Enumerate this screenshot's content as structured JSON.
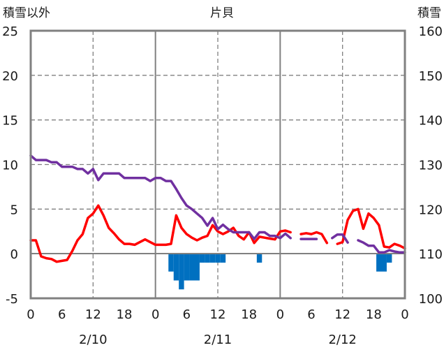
{
  "chart_data": {
    "type": "line",
    "title": "片貝",
    "ylabel_left": "積雪以外",
    "ylabel_right": "積雪",
    "x_tick_labels": [
      "0",
      "6",
      "12",
      "18",
      "0",
      "6",
      "12",
      "18",
      "0",
      "6",
      "12",
      "18",
      "0"
    ],
    "date_labels": [
      "2/10",
      "2/11",
      "2/12"
    ],
    "x_range_hours": [
      0,
      72
    ],
    "left_axis": {
      "range": [
        -5,
        25
      ],
      "ticks": [
        -5,
        0,
        5,
        10,
        15,
        20,
        25
      ]
    },
    "right_axis": {
      "range": [
        100,
        160
      ],
      "ticks": [
        100,
        110,
        120,
        130,
        140,
        150,
        160
      ]
    },
    "grid": true,
    "series": [
      {
        "axis": "left",
        "color": "#ff0000",
        "style": "line",
        "points": [
          [
            0,
            1.5
          ],
          [
            1,
            1.5
          ],
          [
            2,
            -0.3
          ],
          [
            3,
            -0.5
          ],
          [
            4,
            -0.6
          ],
          [
            5,
            -0.9
          ],
          [
            6,
            -0.8
          ],
          [
            7,
            -0.7
          ],
          [
            8,
            0.3
          ],
          [
            9,
            1.5
          ],
          [
            10,
            2.2
          ],
          [
            11,
            4.0
          ],
          [
            12,
            4.5
          ],
          [
            13,
            5.4
          ],
          [
            14,
            4.3
          ],
          [
            15,
            2.9
          ],
          [
            16,
            2.3
          ],
          [
            17,
            1.6
          ],
          [
            18,
            1.1
          ],
          [
            19,
            1.1
          ],
          [
            20,
            1.0
          ],
          [
            21,
            1.3
          ],
          [
            22,
            1.6
          ],
          [
            23,
            1.3
          ],
          [
            24,
            1.0
          ],
          [
            25,
            1.0
          ],
          [
            26,
            1.0
          ],
          [
            27,
            1.1
          ],
          [
            28,
            4.3
          ],
          [
            29,
            2.9
          ],
          [
            30,
            2.2
          ],
          [
            31,
            1.8
          ],
          [
            32,
            1.5
          ],
          [
            33,
            1.8
          ],
          [
            34,
            2.0
          ],
          [
            35,
            3.2
          ],
          [
            36,
            2.5
          ],
          [
            37,
            2.2
          ],
          [
            38,
            2.5
          ],
          [
            39,
            2.9
          ],
          [
            40,
            2.0
          ],
          [
            41,
            1.6
          ],
          [
            42,
            2.4
          ],
          [
            43,
            1.2
          ],
          [
            44,
            1.9
          ],
          [
            45,
            1.8
          ],
          [
            46,
            1.7
          ],
          [
            47,
            1.6
          ],
          [
            48,
            2.5
          ],
          [
            49,
            2.6
          ],
          [
            50,
            2.4
          ],
          null,
          [
            52,
            2.2
          ],
          [
            53,
            2.3
          ],
          [
            54,
            2.2
          ],
          [
            55,
            2.4
          ],
          [
            56,
            2.2
          ],
          [
            57,
            1.2
          ],
          null,
          [
            59,
            1.1
          ],
          [
            60,
            1.3
          ],
          [
            61,
            3.8
          ],
          [
            62,
            4.8
          ],
          [
            63,
            5.0
          ],
          [
            64,
            2.8
          ],
          [
            65,
            4.5
          ],
          [
            66,
            4.0
          ],
          [
            67,
            3.2
          ],
          [
            68,
            0.8
          ],
          [
            69,
            0.7
          ],
          [
            70,
            1.1
          ],
          [
            71,
            0.9
          ],
          [
            72,
            0.6
          ]
        ]
      },
      {
        "axis": "right",
        "color": "#7030a0",
        "style": "line",
        "points": [
          [
            0,
            132
          ],
          [
            1,
            131
          ],
          [
            2,
            131
          ],
          [
            3,
            131
          ],
          [
            4,
            130.5
          ],
          [
            5,
            130.5
          ],
          [
            6,
            129.5
          ],
          [
            7,
            129.5
          ],
          [
            8,
            129.5
          ],
          [
            9,
            129
          ],
          [
            10,
            129
          ],
          [
            11,
            128
          ],
          [
            12,
            129
          ],
          [
            13,
            126.5
          ],
          [
            14,
            128
          ],
          [
            15,
            128
          ],
          [
            16,
            128
          ],
          [
            17,
            128
          ],
          [
            18,
            127
          ],
          [
            19,
            127
          ],
          [
            20,
            127
          ],
          [
            21,
            127
          ],
          [
            22,
            127
          ],
          [
            23,
            126.3
          ],
          [
            24,
            127
          ],
          [
            25,
            127
          ],
          [
            26,
            126.3
          ],
          [
            27,
            126.3
          ],
          [
            28,
            124.5
          ],
          [
            29,
            122.5
          ],
          [
            30,
            120.8
          ],
          [
            31,
            120
          ],
          [
            32,
            119
          ],
          [
            33,
            118
          ],
          [
            34,
            116.3
          ],
          [
            35,
            118
          ],
          [
            36,
            115.5
          ],
          [
            37,
            116.5
          ],
          [
            38,
            115.5
          ],
          [
            39,
            114.8
          ],
          [
            40,
            114.8
          ],
          [
            41,
            114.8
          ],
          [
            42,
            114.8
          ],
          [
            43,
            113.3
          ],
          [
            44,
            114.8
          ],
          [
            45,
            114.8
          ],
          [
            46,
            114
          ],
          [
            47,
            114
          ],
          [
            48,
            113.5
          ],
          [
            49,
            114.5
          ],
          [
            50,
            113.5
          ],
          null,
          [
            52,
            113.3
          ],
          [
            53,
            113.3
          ],
          [
            54,
            113.3
          ],
          [
            55,
            113.3
          ],
          null,
          [
            58,
            113.5
          ],
          [
            59,
            114.3
          ],
          [
            60,
            114.3
          ],
          [
            61,
            112.5
          ],
          null,
          [
            63,
            113
          ],
          [
            64,
            112.5
          ],
          [
            65,
            111.8
          ],
          [
            66,
            111.8
          ],
          [
            67,
            110.3
          ],
          [
            68,
            110.3
          ],
          [
            69,
            110.8
          ],
          [
            70,
            110.5
          ],
          [
            71,
            110.3
          ],
          [
            72,
            110.3
          ]
        ]
      },
      {
        "axis": "left",
        "color": "#0070c0",
        "style": "bar",
        "points": [
          [
            27,
            -2
          ],
          [
            28,
            -3
          ],
          [
            29,
            -4
          ],
          [
            30,
            -3
          ],
          [
            31,
            -3
          ],
          [
            32,
            -3
          ],
          [
            33,
            -1
          ],
          [
            34,
            -1
          ],
          [
            35,
            -1
          ],
          [
            36,
            -1
          ],
          [
            37,
            -1
          ],
          [
            44,
            -1
          ],
          [
            67,
            -2
          ],
          [
            68,
            -2
          ],
          [
            69,
            -1
          ]
        ]
      }
    ]
  }
}
